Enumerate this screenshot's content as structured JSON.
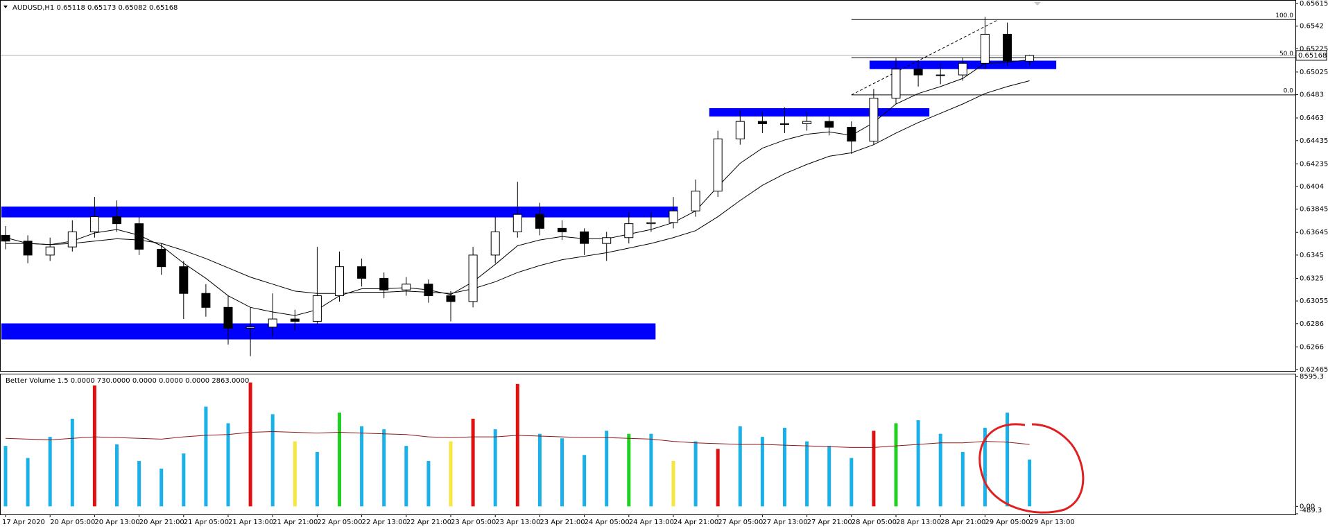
{
  "chart_data": [
    {
      "type": "candlestick",
      "title": "AUDUSD,H1  0.65118 0.65173 0.65082 0.65168",
      "categories": [
        "17 Apr 2020",
        null,
        "20 Apr 05:00",
        null,
        "20 Apr 13:00",
        null,
        "20 Apr 21:00",
        null,
        "21 Apr 05:00",
        null,
        "21 Apr 13:00",
        null,
        "21 Apr 21:00",
        null,
        "22 Apr 05:00",
        null,
        "22 Apr 13:00",
        null,
        "22 Apr 21:00",
        null,
        "23 Apr 05:00",
        null,
        "23 Apr 13:00",
        null,
        "23 Apr 21:00",
        null,
        "24 Apr 05:00",
        null,
        "24 Apr 13:00",
        null,
        "24 Apr 21:00",
        null,
        "27 Apr 05:00",
        null,
        "27 Apr 13:00",
        null,
        "27 Apr 21:00",
        null,
        "28 Apr 05:00",
        null,
        "28 Apr 13:00",
        null,
        "28 Apr 21:00",
        null,
        "29 Apr 05:00",
        null,
        "29 Apr 13:00"
      ],
      "open": [
        0.6362,
        0.6357,
        0.6345,
        0.6352,
        0.6365,
        0.6378,
        0.6372,
        0.635,
        0.6335,
        0.6312,
        0.63,
        0.6282,
        0.6283,
        0.629,
        0.6288,
        0.631,
        0.6335,
        0.6325,
        0.6315,
        0.632,
        0.631,
        0.6305,
        0.6345,
        0.6365,
        0.638,
        0.6368,
        0.6365,
        0.6355,
        0.636,
        0.6372,
        0.6373,
        0.6383,
        0.64,
        0.6445,
        0.646,
        0.6458,
        0.6458,
        0.646,
        0.6455,
        0.6443,
        0.648,
        0.6505,
        0.65,
        0.65,
        0.651,
        0.6535,
        0.65118
      ],
      "high": [
        0.637,
        0.6362,
        0.636,
        0.6375,
        0.6395,
        0.6392,
        0.6378,
        0.6355,
        0.634,
        0.632,
        0.631,
        0.63,
        0.6312,
        0.6298,
        0.6352,
        0.6348,
        0.6342,
        0.633,
        0.6326,
        0.6324,
        0.6314,
        0.6352,
        0.6378,
        0.6408,
        0.639,
        0.6375,
        0.6368,
        0.6365,
        0.6382,
        0.6382,
        0.6395,
        0.641,
        0.6452,
        0.647,
        0.6468,
        0.6472,
        0.6468,
        0.6465,
        0.646,
        0.6488,
        0.6515,
        0.6512,
        0.651,
        0.6515,
        0.655,
        0.6545,
        0.65173
      ],
      "low": [
        0.635,
        0.6338,
        0.634,
        0.6348,
        0.636,
        0.6365,
        0.6345,
        0.6328,
        0.629,
        0.6292,
        0.6268,
        0.6258,
        0.6275,
        0.628,
        0.6285,
        0.6305,
        0.6318,
        0.6308,
        0.631,
        0.6304,
        0.6288,
        0.63,
        0.6338,
        0.636,
        0.6362,
        0.6358,
        0.6345,
        0.634,
        0.6355,
        0.6365,
        0.6368,
        0.6378,
        0.6395,
        0.644,
        0.645,
        0.645,
        0.6452,
        0.6448,
        0.6432,
        0.644,
        0.6475,
        0.649,
        0.6492,
        0.6495,
        0.6505,
        0.6508,
        0.65082
      ],
      "close": [
        0.6357,
        0.6345,
        0.6352,
        0.6365,
        0.6378,
        0.6372,
        0.635,
        0.6335,
        0.6312,
        0.63,
        0.6282,
        0.6283,
        0.629,
        0.6288,
        0.631,
        0.6335,
        0.6325,
        0.6315,
        0.632,
        0.631,
        0.6305,
        0.6345,
        0.6365,
        0.638,
        0.6368,
        0.6365,
        0.6355,
        0.636,
        0.6372,
        0.6373,
        0.6383,
        0.64,
        0.6445,
        0.646,
        0.6458,
        0.6458,
        0.646,
        0.6455,
        0.6443,
        0.648,
        0.6505,
        0.65,
        0.65,
        0.651,
        0.6535,
        0.6512,
        0.65168
      ],
      "moving_averages": [
        {
          "color": "#000000",
          "values": [
            0.636,
            0.6355,
            0.6354,
            0.6357,
            0.6364,
            0.6367,
            0.6362,
            0.6353,
            0.6338,
            0.6325,
            0.631,
            0.63,
            0.6296,
            0.6293,
            0.6298,
            0.631,
            0.6316,
            0.6316,
            0.6317,
            0.6315,
            0.6311,
            0.6322,
            0.6337,
            0.6353,
            0.6358,
            0.6361,
            0.6359,
            0.6359,
            0.6363,
            0.6367,
            0.6373,
            0.6383,
            0.6404,
            0.6424,
            0.6437,
            0.6444,
            0.6449,
            0.6451,
            0.6448,
            0.6459,
            0.6475,
            0.6484,
            0.649,
            0.6497,
            0.651,
            0.6511,
            0.6513
          ]
        },
        {
          "color": "#000000",
          "values": [
            0.6355,
            0.6355,
            0.6354,
            0.6355,
            0.6357,
            0.6359,
            0.6358,
            0.6355,
            0.6349,
            0.6342,
            0.6334,
            0.6326,
            0.632,
            0.6314,
            0.6312,
            0.6312,
            0.6313,
            0.6313,
            0.6314,
            0.6313,
            0.6312,
            0.6316,
            0.6322,
            0.633,
            0.6336,
            0.6341,
            0.6344,
            0.6347,
            0.6351,
            0.6355,
            0.636,
            0.6366,
            0.6378,
            0.6392,
            0.6405,
            0.6415,
            0.6423,
            0.643,
            0.6433,
            0.644,
            0.645,
            0.6459,
            0.6467,
            0.6475,
            0.6484,
            0.649,
            0.6495
          ]
        }
      ],
      "zones": [
        {
          "from": 0,
          "to": 30.2,
          "low": 0.63792,
          "high": 0.6385
        },
        {
          "from": 0,
          "to": 29.2,
          "low": 0.62742,
          "high": 0.62844
        },
        {
          "from": 31.8,
          "to": 41.5,
          "low": 0.6466,
          "high": 0.64696
        },
        {
          "from": 39,
          "to": 47.2,
          "low": 0.65068,
          "high": 0.65105
        }
      ],
      "zone_color": "#0000ff",
      "fibonacci": {
        "from": 38,
        "levels": [
          {
            "label": "100.0",
            "price": 0.65476
          },
          {
            "label": "50.0",
            "price": 0.65148
          },
          {
            "label": "0.0",
            "price": 0.64828
          }
        ],
        "trend": [
          [
            38,
            0.64828
          ],
          [
            44.6,
            0.65476
          ]
        ]
      },
      "last_price": {
        "value": 0.65168,
        "label": "0.65168"
      },
      "ylim": [
        0.62465,
        0.65615
      ],
      "yticks": [
        0.65615,
        0.6542,
        0.65225,
        0.65025,
        0.6483,
        0.6463,
        0.64435,
        0.64235,
        0.6404,
        0.63845,
        0.63645,
        0.6345,
        0.6325,
        0.63055,
        0.6286,
        0.6266,
        0.62465
      ]
    },
    {
      "type": "bar",
      "title": "Better Volume 1.5 0.0000 730.0000 0.0000 0.0000 0.0000 2863.0000",
      "values": [
        4000,
        3200,
        4600,
        5800,
        8000,
        4100,
        3000,
        2500,
        3500,
        6600,
        5500,
        8200,
        6100,
        4300,
        3600,
        6200,
        5300,
        5100,
        4000,
        3000,
        4300,
        5800,
        5100,
        8100,
        4800,
        4500,
        3400,
        5000,
        4800,
        4800,
        3000,
        4300,
        3800,
        5300,
        4600,
        5200,
        4300,
        4000,
        3200,
        5000,
        5500,
        5700,
        4800,
        3600,
        5200,
        6200,
        3100
      ],
      "colors": [
        "#1ab0e8",
        "#1ab0e8",
        "#1ab0e8",
        "#1ab0e8",
        "#e01010",
        "#1ab0e8",
        "#1ab0e8",
        "#1ab0e8",
        "#1ab0e8",
        "#1ab0e8",
        "#1ab0e8",
        "#e01010",
        "#1ab0e8",
        "#f5e642",
        "#1ab0e8",
        "#20d020",
        "#1ab0e8",
        "#1ab0e8",
        "#1ab0e8",
        "#1ab0e8",
        "#f5e642",
        "#e01010",
        "#1ab0e8",
        "#e01010",
        "#1ab0e8",
        "#1ab0e8",
        "#1ab0e8",
        "#1ab0e8",
        "#20d020",
        "#1ab0e8",
        "#f5e642",
        "#1ab0e8",
        "#e01010",
        "#1ab0e8",
        "#1ab0e8",
        "#1ab0e8",
        "#1ab0e8",
        "#1ab0e8",
        "#1ab0e8",
        "#e01010",
        "#20d020",
        "#1ab0e8",
        "#1ab0e8",
        "#1ab0e8",
        "#1ab0e8",
        "#1ab0e8",
        "#1ab0e8"
      ],
      "average": {
        "color": "#8b1a1a",
        "values": [
          4500,
          4450,
          4400,
          4500,
          4600,
          4550,
          4500,
          4450,
          4600,
          4700,
          4750,
          4900,
          4950,
          4900,
          4850,
          4900,
          4850,
          4800,
          4750,
          4600,
          4550,
          4600,
          4600,
          4700,
          4650,
          4600,
          4550,
          4550,
          4500,
          4450,
          4300,
          4200,
          4150,
          4100,
          4100,
          4050,
          4000,
          3950,
          3900,
          3900,
          4000,
          4100,
          4200,
          4200,
          4300,
          4250,
          4100
        ]
      },
      "ylim": [
        -489.3,
        8595.3
      ],
      "yticks": [
        8595.3,
        {
          "value": 0,
          "label": "0.00"
        },
        -489.3
      ]
    }
  ]
}
